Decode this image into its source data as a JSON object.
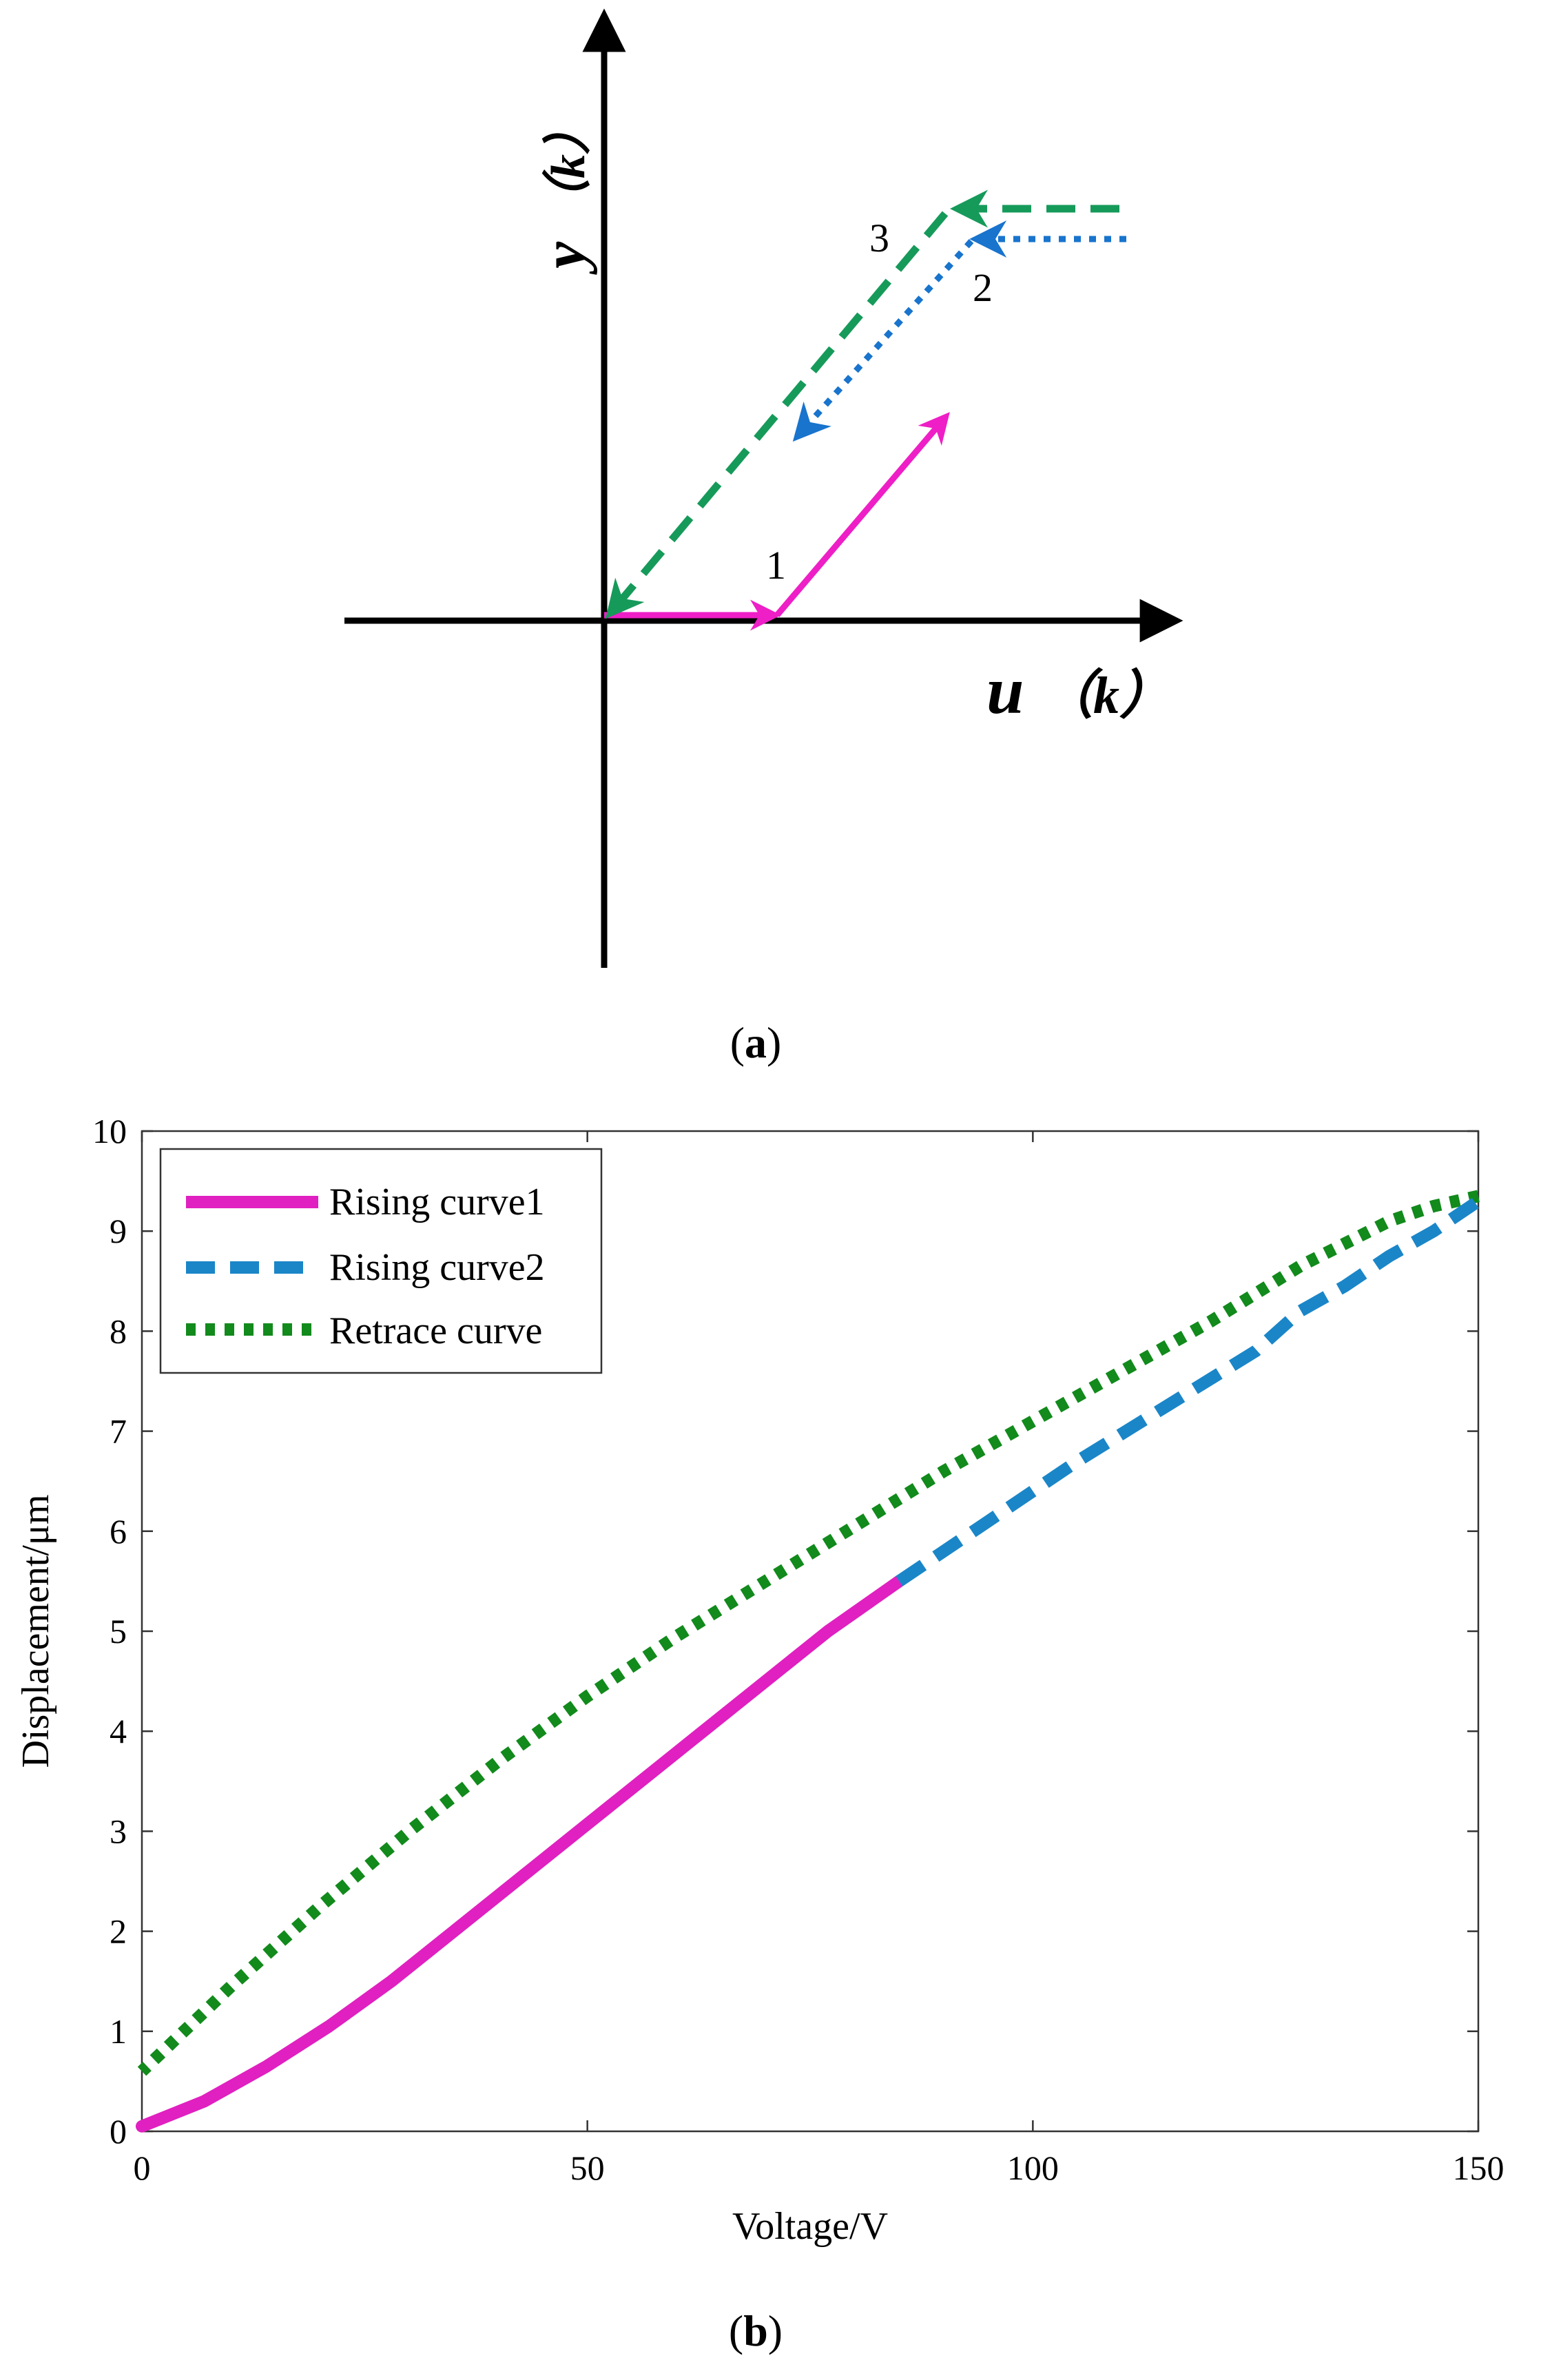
{
  "panel_a": {
    "caption_open": "(",
    "caption_letter": "a",
    "caption_close": ")",
    "x_axis_label_var": "u",
    "x_axis_label_arg": "（k）",
    "y_axis_label_var": "y",
    "y_axis_label_arg": "（k）",
    "path_labels": [
      "1",
      "2",
      "3"
    ],
    "colors": {
      "path1": "#ee1fc6",
      "path2": "#1874cd",
      "path3": "#169a5a",
      "axis": "#000000"
    }
  },
  "panel_b": {
    "caption_open": "(",
    "caption_letter": "b",
    "caption_close": ")"
  },
  "chart_data": {
    "type": "line",
    "title": "",
    "xlabel": "Voltage/V",
    "ylabel": "Displacement/μm",
    "xlim": [
      0,
      150
    ],
    "ylim": [
      0,
      10
    ],
    "xticks": [
      "0",
      "50",
      "100",
      "150"
    ],
    "yticks": [
      "0",
      "1",
      "2",
      "3",
      "4",
      "5",
      "6",
      "7",
      "8",
      "9",
      "10"
    ],
    "grid": false,
    "legend_position": "top-left",
    "series": [
      {
        "name": "Rising curve1",
        "style": "solid",
        "color": "#e020c0",
        "x": [
          0,
          7,
          14,
          21,
          28,
          35,
          42,
          49,
          56,
          63,
          70,
          77,
          85
        ],
        "y": [
          0.05,
          0.3,
          0.65,
          1.05,
          1.5,
          2.0,
          2.5,
          3.0,
          3.5,
          4.0,
          4.5,
          5.0,
          5.5
        ]
      },
      {
        "name": "Rising curve2",
        "style": "dashed",
        "color": "#1a86c8",
        "x": [
          85,
          95,
          105,
          115,
          125,
          130,
          135,
          140,
          145,
          150
        ],
        "y": [
          5.5,
          6.1,
          6.7,
          7.25,
          7.8,
          8.2,
          8.45,
          8.75,
          9.0,
          9.3
        ]
      },
      {
        "name": "Retrace curve",
        "style": "dotted",
        "color": "#128a1c",
        "x": [
          150,
          145,
          140,
          130,
          120,
          110,
          100,
          90,
          80,
          70,
          60,
          50,
          40,
          30,
          20,
          10,
          0
        ],
        "y": [
          9.35,
          9.25,
          9.1,
          8.65,
          8.1,
          7.6,
          7.1,
          6.6,
          6.05,
          5.5,
          4.95,
          4.35,
          3.7,
          3.0,
          2.25,
          1.45,
          0.6
        ]
      }
    ]
  }
}
